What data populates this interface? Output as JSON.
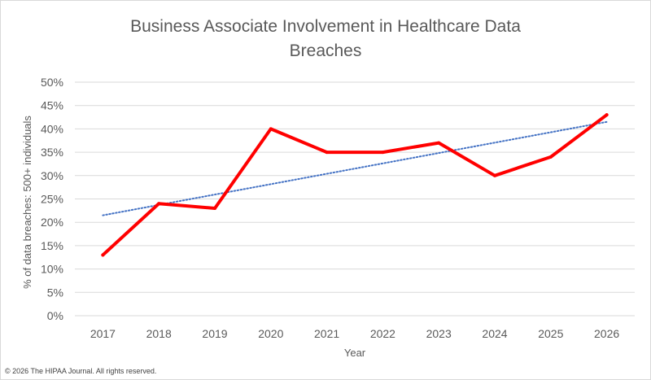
{
  "chart_data": {
    "type": "line",
    "title_lines": [
      "Business Associate Involvement in Healthcare Data",
      "Breaches"
    ],
    "xlabel": "Year",
    "ylabel": "% of data breaches: 500+ individuals",
    "categories": [
      "2017",
      "2018",
      "2019",
      "2020",
      "2021",
      "2022",
      "2023",
      "2024",
      "2025",
      "2026"
    ],
    "ylim": [
      0,
      50
    ],
    "yticks": [
      0,
      5,
      10,
      15,
      20,
      25,
      30,
      35,
      40,
      45,
      50
    ],
    "ytick_labels": [
      "0%",
      "5%",
      "10%",
      "15%",
      "20%",
      "25%",
      "30%",
      "35%",
      "40%",
      "45%",
      "50%"
    ],
    "grid": true,
    "series": [
      {
        "values": [
          13,
          24,
          23,
          40,
          35,
          35,
          37,
          30,
          34,
          43
        ],
        "color": "#ff0000",
        "style": "solid"
      }
    ],
    "trendline": {
      "type": "linear",
      "start": 21.5,
      "end": 41.5,
      "color": "#4472c4",
      "style": "dotted"
    }
  },
  "footer": {
    "copyright": "© 2026 The HIPAA Journal. All rights reserved."
  }
}
